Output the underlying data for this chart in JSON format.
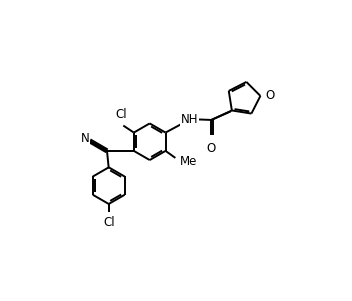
{
  "bg_color": "#ffffff",
  "line_color": "#000000",
  "line_width": 1.4,
  "font_size": 8.5,
  "figsize": [
    3.52,
    3.01
  ],
  "dpi": 100,
  "xlim": [
    0,
    10
  ],
  "ylim": [
    0,
    10
  ]
}
